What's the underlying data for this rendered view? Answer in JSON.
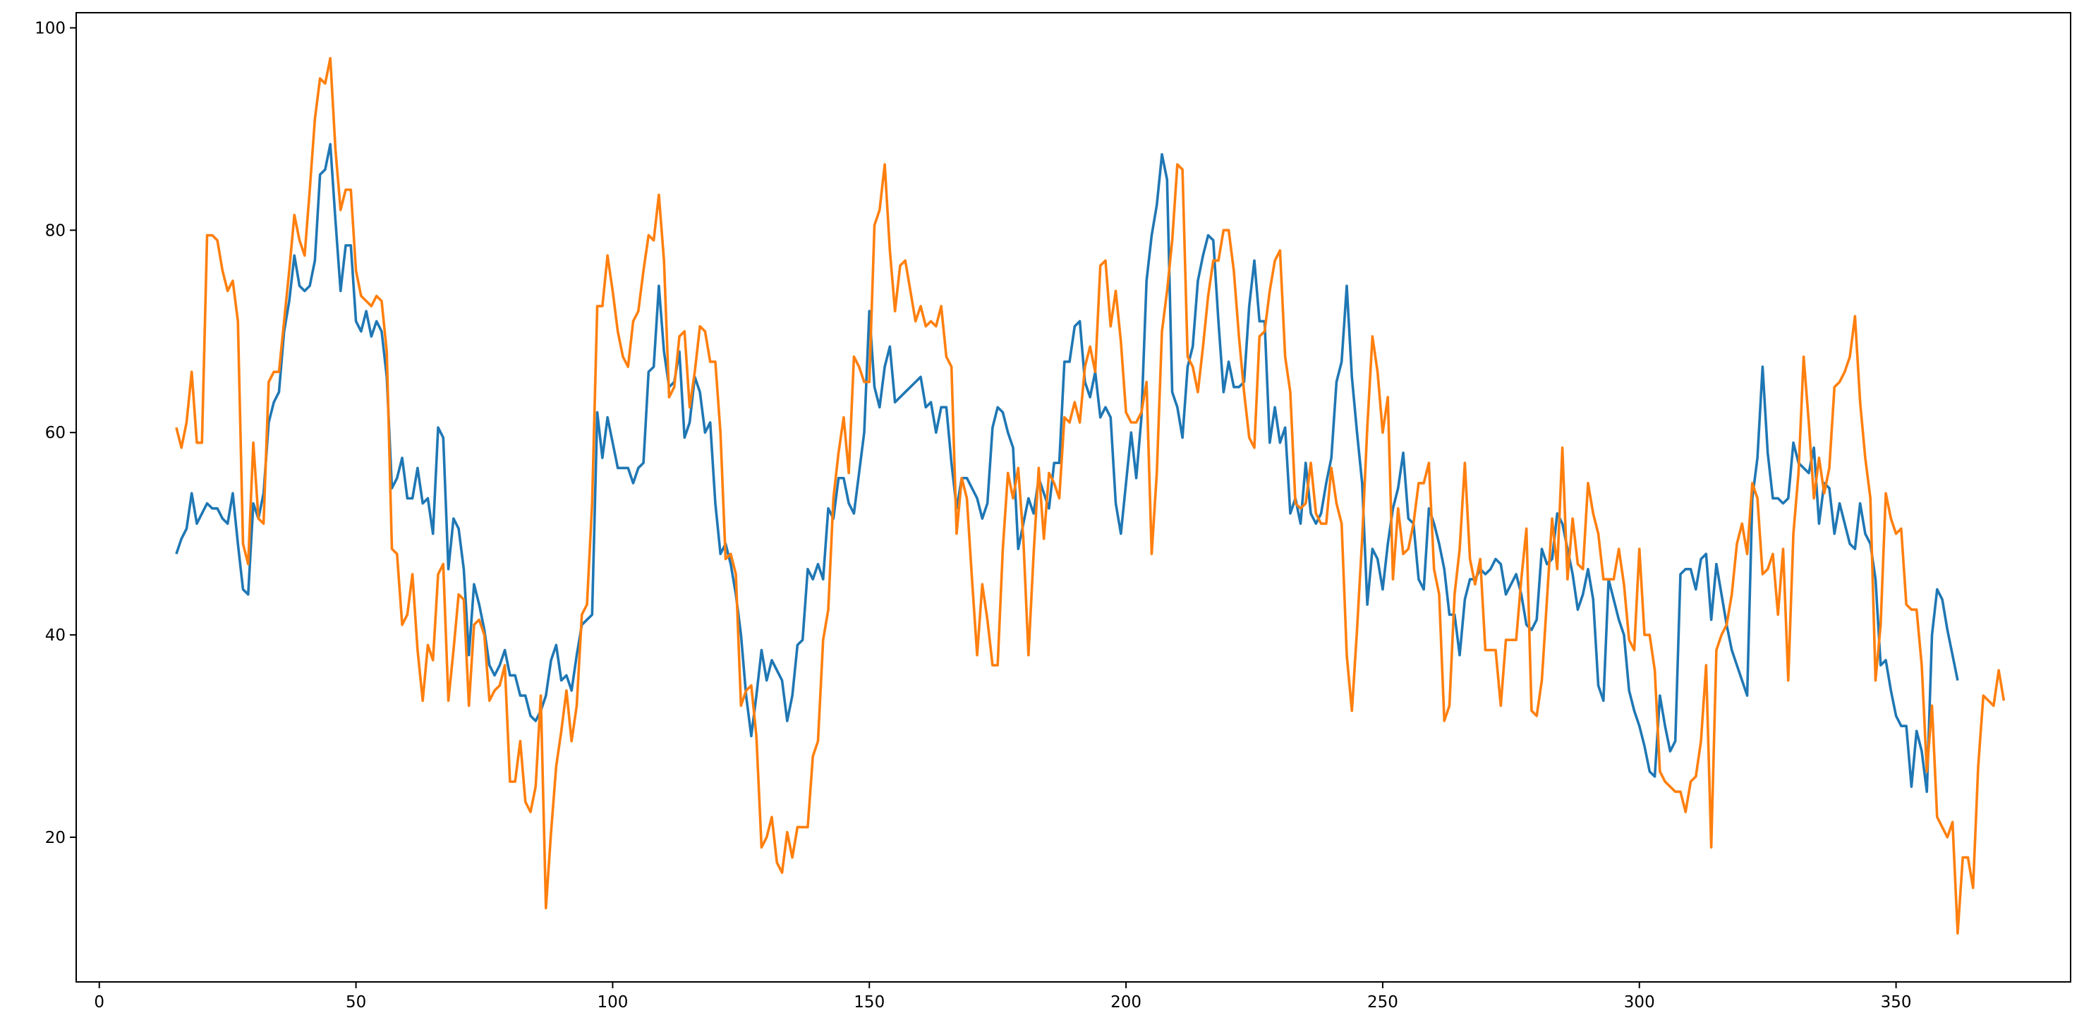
{
  "chart_data": {
    "type": "line",
    "title": "",
    "xlabel": "",
    "ylabel": "",
    "xlim": [
      -4.5,
      384
    ],
    "ylim": [
      5.7,
      101.5
    ],
    "x_ticks": [
      0,
      50,
      100,
      150,
      200,
      250,
      300,
      350
    ],
    "y_ticks": [
      20,
      40,
      60,
      80,
      100
    ],
    "grid": false,
    "legend": false,
    "x_start": 15,
    "series": [
      {
        "color": "#1f77b4",
        "values": [
          48,
          49.5,
          50.5,
          54,
          51,
          52,
          53,
          52.5,
          52.5,
          51.5,
          51,
          54,
          49,
          44.5,
          44,
          53,
          51.5,
          54,
          61,
          63,
          64,
          70,
          73,
          77.5,
          74.5,
          74,
          74.5,
          77,
          85.5,
          86,
          88.5,
          81,
          74,
          78.5,
          78.5,
          71,
          70,
          72,
          69.5,
          71,
          70,
          65.5,
          54.5,
          55.5,
          57.5,
          53.5,
          53.5,
          56.5,
          53,
          53.5,
          50,
          60.5,
          59.5,
          46.5,
          51.5,
          50.5,
          46.5,
          38,
          45,
          43,
          40.5,
          37,
          36,
          37,
          38.5,
          36,
          36,
          34,
          34,
          32,
          31.5,
          32.5,
          34,
          37.5,
          39,
          35.5,
          36,
          34.5,
          38,
          41,
          41.5,
          42,
          62,
          57.5,
          61.5,
          59,
          56.5,
          56.5,
          56.5,
          55,
          56.5,
          57,
          66,
          66.5,
          74.5,
          68,
          64.5,
          65,
          68,
          59.5,
          61,
          65.5,
          64,
          60,
          61,
          53,
          48,
          49,
          47,
          44,
          40,
          34,
          30,
          34,
          38.5,
          35.5,
          37.5,
          36.5,
          35.5,
          31.5,
          34,
          39,
          39.5,
          46.5,
          45.5,
          47,
          45.5,
          52.5,
          51.5,
          55.5,
          55.5,
          53,
          52,
          56,
          60,
          72,
          64.5,
          62.5,
          66.5,
          68.5,
          63,
          63.5,
          64,
          64.5,
          65,
          65.5,
          62.5,
          63,
          60,
          62.5,
          62.5,
          57,
          52.5,
          55.5,
          55.5,
          54.5,
          53.5,
          51.5,
          53,
          60.5,
          62.5,
          62,
          60,
          58.5,
          48.5,
          51,
          53.5,
          52,
          55.5,
          54,
          52.5,
          57,
          57,
          67,
          67,
          70.5,
          71,
          65,
          63.5,
          66,
          61.5,
          62.5,
          61.5,
          53,
          50,
          55,
          60,
          55.5,
          61.5,
          75,
          79.5,
          82.5,
          87.5,
          85,
          64,
          62.5,
          59.5,
          66.5,
          68.5,
          75,
          77.5,
          79.5,
          79,
          71,
          64,
          67,
          64.5,
          64.5,
          65,
          72.5,
          77,
          71,
          71,
          59,
          62.5,
          59,
          60.5,
          52,
          53.5,
          51,
          57,
          52,
          51,
          52,
          55,
          57.5,
          65,
          67,
          74.5,
          65.5,
          60,
          55,
          43,
          48.5,
          47.5,
          44.5,
          49,
          52.5,
          54.5,
          58,
          51.5,
          51,
          45.5,
          44.5,
          52.5,
          51,
          49,
          46.5,
          42,
          42,
          38,
          43.5,
          45.5,
          45.5,
          46.5,
          46,
          46.5,
          47.5,
          47,
          44,
          45,
          46,
          44,
          41,
          40.5,
          41.5,
          48.5,
          47,
          47.5,
          52,
          51,
          48.5,
          46,
          42.5,
          44,
          46.5,
          43.5,
          35,
          33.5,
          45.5,
          43.5,
          41.5,
          40,
          34.5,
          32.5,
          31,
          29,
          26.5,
          26,
          34,
          31,
          28.5,
          29.5,
          46,
          46.5,
          46.5,
          44.5,
          47.5,
          48,
          41.5,
          47,
          44,
          41,
          38.5,
          37,
          35.5,
          34,
          53.5,
          57.5,
          66.5,
          58,
          53.5,
          53.5,
          53,
          53.5,
          59,
          57,
          56.5,
          56,
          58.5,
          51,
          55,
          54.5,
          50,
          53,
          51,
          49,
          48.5,
          53,
          50,
          49,
          45.5,
          37,
          37.5,
          34.5,
          32,
          31,
          31,
          25,
          30.5,
          28.5,
          24.5,
          40,
          44.5,
          43.5,
          40.5,
          38,
          35.5
        ]
      },
      {
        "color": "#ff7f0e",
        "values": [
          60.5,
          58.5,
          61,
          66,
          59,
          59,
          79.5,
          79.5,
          79,
          76,
          74,
          75,
          71,
          49,
          47,
          59,
          51.5,
          51,
          65,
          66,
          66,
          71,
          76,
          81.5,
          79,
          77.5,
          84,
          91,
          95,
          94.5,
          97,
          88,
          82,
          84,
          84,
          76,
          73.5,
          73,
          72.5,
          73.5,
          73,
          68,
          48.5,
          48,
          41,
          42,
          46,
          38.5,
          33.5,
          39,
          37.5,
          46,
          47,
          33.5,
          38.5,
          44,
          43.5,
          33,
          41,
          41.5,
          40,
          33.5,
          34.5,
          35,
          37,
          25.5,
          25.5,
          29.5,
          23.5,
          22.5,
          25,
          34,
          13,
          20.5,
          27,
          30.5,
          34.5,
          29.5,
          33,
          42,
          43,
          53,
          72.5,
          72.5,
          77.5,
          74,
          70,
          67.5,
          66.5,
          71,
          72,
          76,
          79.5,
          79,
          83.5,
          77,
          63.5,
          64.5,
          69.5,
          70,
          62.5,
          66,
          70.5,
          70,
          67,
          67,
          60,
          47.5,
          48,
          46,
          33,
          34.5,
          35,
          30,
          19,
          20,
          22,
          17.5,
          16.5,
          20.5,
          18,
          21,
          21,
          21,
          28,
          29.5,
          39.5,
          42.5,
          53.5,
          58,
          61.5,
          56,
          67.5,
          66.5,
          65,
          65,
          80.5,
          82,
          86.5,
          78,
          72,
          76.5,
          77,
          74,
          71,
          72.5,
          70.5,
          71,
          70.5,
          72.5,
          67.5,
          66.5,
          50,
          55.5,
          53.5,
          45.5,
          38,
          45,
          41.5,
          37,
          37,
          48.5,
          56,
          53.5,
          56.5,
          49.5,
          38,
          48,
          56.5,
          49.5,
          56,
          55,
          53.5,
          61.5,
          61,
          63,
          61,
          66.5,
          68.5,
          66,
          76.5,
          77,
          70.5,
          74,
          69,
          62,
          61,
          61,
          62,
          65,
          48,
          56,
          70,
          74,
          79,
          86.5,
          86,
          67.5,
          66.5,
          64,
          68.5,
          73.5,
          77,
          77,
          80,
          80,
          76,
          69.5,
          64,
          59.5,
          58.5,
          69.5,
          70,
          74,
          77,
          78,
          67.5,
          64,
          53,
          52.5,
          53,
          57,
          52,
          51,
          51,
          56.5,
          53,
          51,
          38,
          32.5,
          40.5,
          49.5,
          60.5,
          69.5,
          66,
          60,
          63.5,
          45.5,
          52.5,
          48,
          48.5,
          51,
          55,
          55,
          57,
          46.5,
          44,
          31.5,
          33,
          44,
          48.5,
          57,
          47.5,
          45,
          47.5,
          38.5,
          38.5,
          38.5,
          33,
          39.5,
          39.5,
          39.5,
          45.5,
          50.5,
          32.5,
          32,
          35.5,
          43.5,
          51.5,
          46.5,
          58.5,
          45.5,
          51.5,
          47,
          46.5,
          55,
          52,
          50,
          45.5,
          45.5,
          45.5,
          48.5,
          45,
          39.5,
          38.5,
          48.5,
          40,
          40,
          36.5,
          26.5,
          25.5,
          25,
          24.5,
          24.5,
          22.5,
          25.5,
          26,
          29.5,
          37,
          19,
          38.5,
          40,
          41,
          44,
          49,
          51,
          48,
          55,
          53.5,
          46,
          46.5,
          48,
          42,
          48.5,
          35.5,
          50,
          56,
          67.5,
          61,
          53.5,
          57.5,
          54,
          56.5,
          64.5,
          65,
          66,
          67.5,
          71.5,
          63,
          57.5,
          53.5,
          35.5,
          41,
          54,
          51.5,
          50,
          50.5,
          43,
          42.5,
          42.5,
          37,
          26.5,
          33,
          22,
          21,
          20,
          21.5,
          10.5,
          18,
          18,
          15,
          27,
          34,
          33.5,
          33,
          36.5,
          33.5
        ]
      }
    ]
  }
}
